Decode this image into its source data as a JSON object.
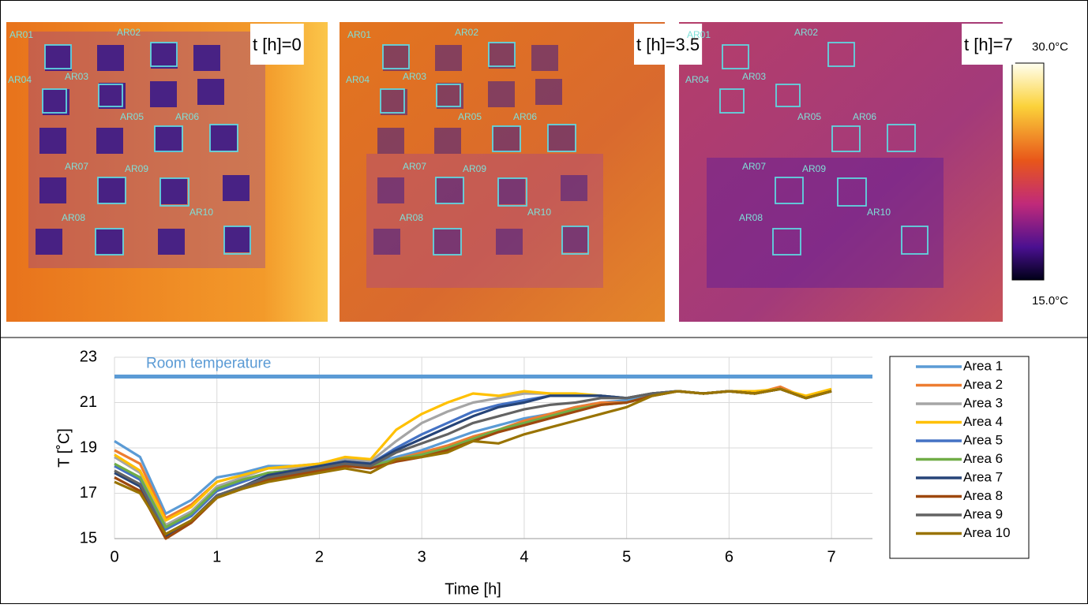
{
  "panels": [
    {
      "label": "t [h]=0",
      "regions": [
        "AR01",
        "AR02",
        "AR04",
        "AR03",
        "AR05",
        "AR06",
        "AR07",
        "AR09",
        "AR08",
        "AR10"
      ]
    },
    {
      "label": "t [h]=3.5",
      "regions": [
        "AR01",
        "AR02",
        "AR04",
        "AR03",
        "AR05",
        "AR06",
        "AR07",
        "AR09",
        "AR08",
        "AR10"
      ]
    },
    {
      "label": "t [h]=7",
      "regions": [
        "AR01",
        "AR02",
        "AR04",
        "AR03",
        "AR05",
        "AR06",
        "AR07",
        "AR09",
        "AR08",
        "AR10"
      ]
    }
  ],
  "colorbar": {
    "max_label": "30.0°C",
    "min_label": "15.0°C"
  },
  "chart_data": {
    "type": "line",
    "x_label": "Time [h]",
    "y_label": "T [˚C]",
    "annotation": {
      "text": "Room temperature",
      "value": 22.15,
      "color": "#5b9bd5"
    },
    "x": [
      0,
      0.25,
      0.5,
      0.75,
      1,
      1.25,
      1.5,
      1.75,
      2,
      2.25,
      2.5,
      2.75,
      3,
      3.25,
      3.5,
      3.75,
      4,
      4.25,
      4.5,
      4.75,
      5,
      5.25,
      5.5,
      5.75,
      6,
      6.25,
      6.5,
      6.75,
      7
    ],
    "xlim": [
      0,
      7.4
    ],
    "xticks": [
      0,
      1,
      2,
      3,
      4,
      5,
      6,
      7
    ],
    "ylim": [
      15,
      23
    ],
    "yticks": [
      15,
      17,
      19,
      21,
      23
    ],
    "grid": true,
    "series": [
      {
        "name": "Area 1",
        "color": "#5b9bd5",
        "values": [
          19.3,
          18.6,
          16.1,
          16.7,
          17.7,
          17.9,
          18.2,
          18.2,
          18.3,
          18.5,
          18.3,
          18.6,
          18.9,
          19.3,
          19.7,
          20.0,
          20.3,
          20.5,
          20.8,
          21.0,
          21.1,
          21.4,
          21.5,
          21.4,
          21.5,
          21.4,
          21.6,
          21.2,
          21.5
        ]
      },
      {
        "name": "Area 2",
        "color": "#ed7d31",
        "values": [
          18.9,
          18.3,
          15.9,
          16.5,
          17.5,
          17.8,
          18.1,
          18.1,
          18.2,
          18.4,
          18.2,
          18.5,
          18.8,
          19.1,
          19.5,
          19.8,
          20.2,
          20.5,
          20.8,
          21.0,
          21.0,
          21.3,
          21.5,
          21.4,
          21.5,
          21.4,
          21.7,
          21.2,
          21.5
        ]
      },
      {
        "name": "Area 3",
        "color": "#a5a5a5",
        "values": [
          18.6,
          17.9,
          15.6,
          16.2,
          17.3,
          17.7,
          18.1,
          18.1,
          18.2,
          18.5,
          18.4,
          19.3,
          20.1,
          20.6,
          21.0,
          21.2,
          21.4,
          21.4,
          21.3,
          21.3,
          21.2,
          21.4,
          21.5,
          21.4,
          21.5,
          21.4,
          21.6,
          21.2,
          21.5
        ]
      },
      {
        "name": "Area 4",
        "color": "#ffc000",
        "values": [
          18.7,
          18.0,
          15.8,
          16.4,
          17.5,
          17.8,
          18.1,
          18.2,
          18.3,
          18.6,
          18.5,
          19.8,
          20.5,
          21.0,
          21.4,
          21.3,
          21.5,
          21.4,
          21.4,
          21.3,
          21.2,
          21.4,
          21.5,
          21.4,
          21.5,
          21.5,
          21.6,
          21.3,
          21.6
        ]
      },
      {
        "name": "Area 5",
        "color": "#4472c4",
        "values": [
          18.2,
          17.6,
          15.4,
          16.0,
          17.1,
          17.5,
          17.9,
          18.0,
          18.2,
          18.4,
          18.3,
          19.0,
          19.6,
          20.1,
          20.6,
          20.9,
          21.1,
          21.3,
          21.3,
          21.3,
          21.2,
          21.4,
          21.5,
          21.4,
          21.5,
          21.4,
          21.6,
          21.2,
          21.5
        ]
      },
      {
        "name": "Area 6",
        "color": "#70ad47",
        "values": [
          18.3,
          17.7,
          15.5,
          16.1,
          17.2,
          17.6,
          17.9,
          18.0,
          18.2,
          18.4,
          18.2,
          18.5,
          18.7,
          19.0,
          19.4,
          19.8,
          20.1,
          20.4,
          20.7,
          20.9,
          21.0,
          21.3,
          21.5,
          21.4,
          21.5,
          21.4,
          21.6,
          21.2,
          21.5
        ]
      },
      {
        "name": "Area 7",
        "color": "#264478",
        "values": [
          17.9,
          17.3,
          15.1,
          15.8,
          16.9,
          17.3,
          17.8,
          18.0,
          18.2,
          18.4,
          18.3,
          18.9,
          19.4,
          19.9,
          20.4,
          20.8,
          21.0,
          21.3,
          21.3,
          21.3,
          21.2,
          21.4,
          21.5,
          21.4,
          21.5,
          21.4,
          21.6,
          21.2,
          21.5
        ]
      },
      {
        "name": "Area 8",
        "color": "#9e480e",
        "values": [
          17.7,
          17.1,
          15.0,
          15.7,
          16.8,
          17.2,
          17.6,
          17.8,
          18.0,
          18.2,
          18.1,
          18.4,
          18.6,
          18.9,
          19.3,
          19.7,
          20.0,
          20.3,
          20.6,
          20.9,
          21.0,
          21.3,
          21.5,
          21.4,
          21.5,
          21.4,
          21.6,
          21.2,
          21.5
        ]
      },
      {
        "name": "Area 9",
        "color": "#636363",
        "values": [
          18.0,
          17.4,
          15.2,
          15.8,
          16.9,
          17.3,
          17.7,
          17.9,
          18.1,
          18.3,
          18.2,
          18.8,
          19.2,
          19.6,
          20.1,
          20.4,
          20.7,
          20.9,
          21.0,
          21.2,
          21.2,
          21.4,
          21.5,
          21.4,
          21.5,
          21.4,
          21.6,
          21.2,
          21.5
        ]
      },
      {
        "name": "Area 10",
        "color": "#997300",
        "values": [
          17.5,
          17.0,
          15.2,
          15.8,
          16.8,
          17.2,
          17.5,
          17.7,
          17.9,
          18.1,
          17.9,
          18.5,
          18.6,
          18.8,
          19.3,
          19.2,
          19.6,
          19.9,
          20.2,
          20.5,
          20.8,
          21.3,
          21.5,
          21.4,
          21.5,
          21.4,
          21.6,
          21.2,
          21.5
        ]
      }
    ]
  }
}
